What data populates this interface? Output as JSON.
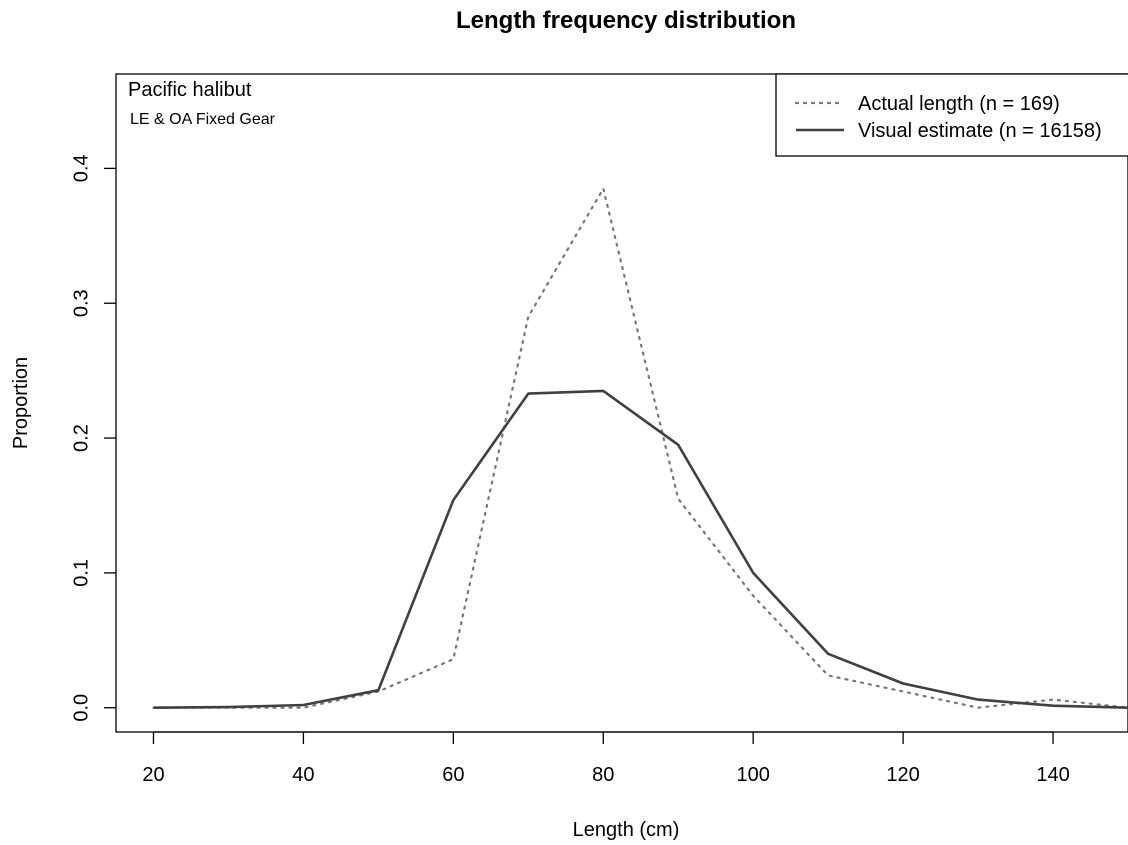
{
  "chart_data": {
    "type": "line",
    "title": "Length frequency distribution",
    "xlabel": "Length (cm)",
    "ylabel": "Proportion",
    "xlim": [
      15,
      150
    ],
    "ylim": [
      -0.018,
      0.47
    ],
    "x_ticks": [
      20,
      40,
      60,
      80,
      100,
      120,
      140
    ],
    "y_ticks": [
      0.0,
      0.1,
      0.2,
      0.3,
      0.4
    ],
    "y_tick_labels": [
      "0.0",
      "0.1",
      "0.2",
      "0.3",
      "0.4"
    ],
    "annotations": {
      "species": "Pacific halibut",
      "gear": "LE & OA Fixed Gear"
    },
    "legend_position": "top-right",
    "series": [
      {
        "name": "Actual length (n = 169)",
        "line_style": "dotted",
        "color": "#777777",
        "x": [
          20,
          30,
          40,
          50,
          60,
          70,
          80,
          90,
          100,
          110,
          120,
          130,
          140,
          150
        ],
        "y": [
          0.0,
          0.0,
          0.0,
          0.012,
          0.036,
          0.29,
          0.385,
          0.155,
          0.083,
          0.024,
          0.012,
          0.0,
          0.006,
          0.0
        ]
      },
      {
        "name": "Visual estimate (n = 16158)",
        "line_style": "solid",
        "color": "#404040",
        "x": [
          20,
          30,
          40,
          50,
          60,
          70,
          80,
          90,
          100,
          110,
          120,
          130,
          140,
          150
        ],
        "y": [
          0.0,
          0.0005,
          0.002,
          0.013,
          0.154,
          0.233,
          0.235,
          0.195,
          0.1,
          0.04,
          0.018,
          0.006,
          0.0015,
          0.0
        ]
      }
    ]
  }
}
